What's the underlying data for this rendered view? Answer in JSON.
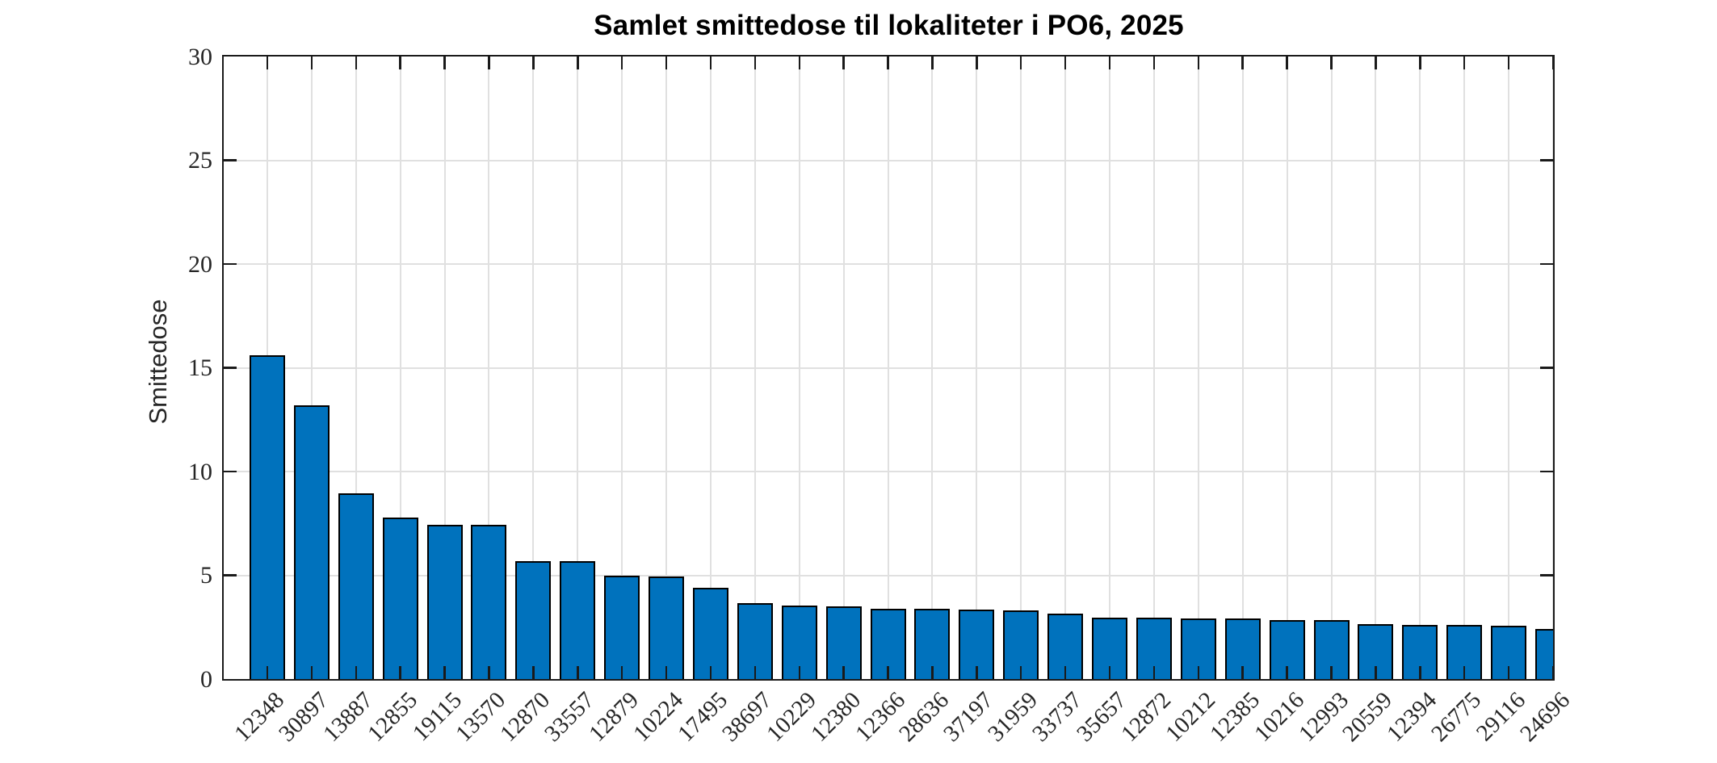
{
  "title": "Samlet smittedose til lokaliteter i PO6, 2025",
  "chart_data": {
    "type": "bar",
    "title": "Samlet smittedose til lokaliteter i PO6, 2025",
    "xlabel": "",
    "ylabel": "Smittedose",
    "categories": [
      "12348",
      "30897",
      "13887",
      "12855",
      "19115",
      "13570",
      "12870",
      "33557",
      "12879",
      "10224",
      "17495",
      "38697",
      "10229",
      "12380",
      "12366",
      "28636",
      "37197",
      "31959",
      "33737",
      "35657",
      "12872",
      "10212",
      "12385",
      "10216",
      "12993",
      "20559",
      "12394",
      "26775",
      "29116",
      "24696"
    ],
    "values": [
      15.6,
      13.2,
      8.95,
      7.8,
      7.45,
      7.45,
      5.7,
      5.7,
      5.0,
      4.95,
      4.4,
      3.65,
      3.55,
      3.5,
      3.4,
      3.4,
      3.35,
      3.3,
      3.15,
      2.95,
      2.95,
      2.9,
      2.9,
      2.85,
      2.85,
      2.65,
      2.6,
      2.6,
      2.55,
      2.4
    ],
    "ylim": [
      0,
      30
    ],
    "yticks": [
      0,
      5,
      10,
      15,
      20,
      25,
      30
    ],
    "xtick_rotation": 45,
    "grid": true,
    "legend": "none",
    "bar_color": "#0072BD",
    "bar_edge_color": "#000000",
    "axis_color": "#1a1a1a",
    "grid_color": "#e0e0e0",
    "tick_label_color": "#262626"
  }
}
